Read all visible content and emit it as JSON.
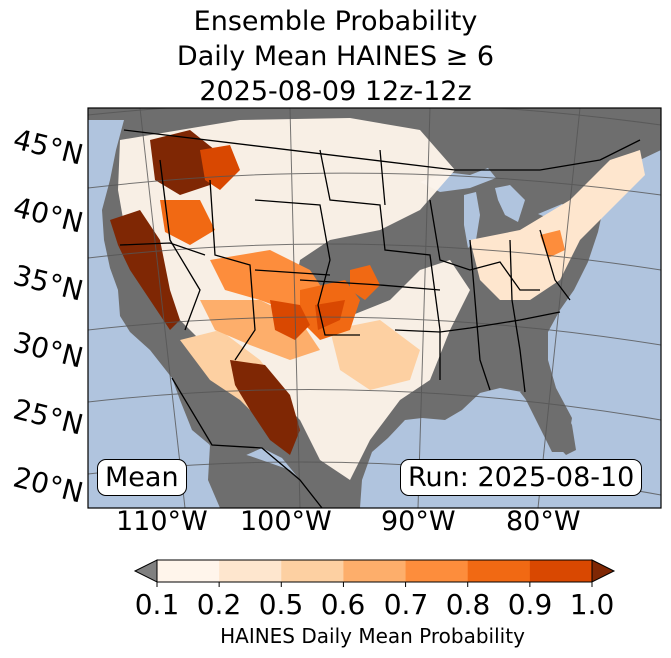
{
  "title": {
    "line1": "Ensemble Probability",
    "line2": "Daily Mean HAINES ≥ 6",
    "line3": "2025-08-09 12z-12z"
  },
  "map": {
    "latitude_labels": [
      "45°N",
      "40°N",
      "35°N",
      "30°N",
      "25°N",
      "20°N"
    ],
    "longitude_labels": [
      "110°W",
      "100°W",
      "90°W",
      "80°W"
    ],
    "stat_box": "Mean",
    "run_box": "Run: 2025-08-10",
    "colors": {
      "ocean": "#b0c4de",
      "land_background": "#6e6e6e",
      "borders": "#000000"
    }
  },
  "colorbar": {
    "label": "HAINES Daily Mean Probability",
    "ticks": [
      "0.1",
      "0.2",
      "0.5",
      "0.6",
      "0.7",
      "0.8",
      "0.9",
      "1.0"
    ],
    "under_color": "#808080",
    "over_color": "#7f2704",
    "colors": [
      "#fff5eb",
      "#fee6ce",
      "#fdd0a2",
      "#fdae6b",
      "#fd8d3c",
      "#f16913",
      "#d94801"
    ]
  }
}
